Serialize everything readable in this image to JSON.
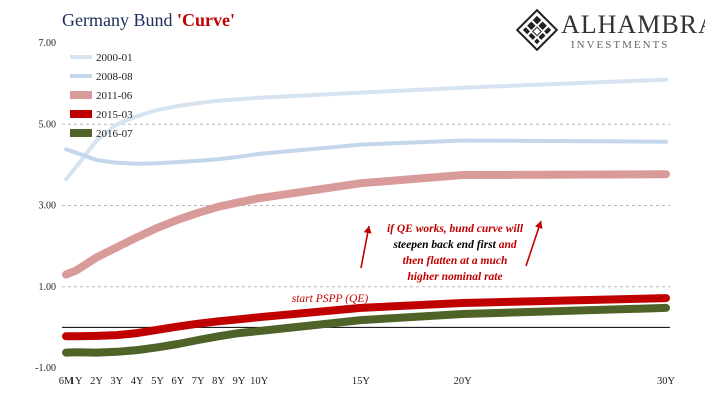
{
  "title": {
    "main": "Germany Bund ",
    "accent": "'Curve'"
  },
  "logo": {
    "name": "ALHAMBRA",
    "sub": "INVESTMENTS"
  },
  "colors": {
    "s2000": "#d6e3f0",
    "s2008": "#c3d6ec",
    "s2011": "#d99a9a",
    "s2015": "#c00000",
    "s2016": "#4f6228",
    "arrow": "#c00000",
    "grid": "#b8b8b8",
    "zero": "#000000"
  },
  "chart_data": {
    "type": "line",
    "x_tick_labels": [
      "6M",
      "1Y",
      "2Y",
      "3Y",
      "4Y",
      "5Y",
      "6Y",
      "7Y",
      "8Y",
      "9Y",
      "10Y",
      "15Y",
      "20Y",
      "30Y"
    ],
    "x_years": [
      0.5,
      1,
      2,
      3,
      4,
      5,
      6,
      7,
      8,
      9,
      10,
      15,
      20,
      30
    ],
    "y_ticks": [
      "7.00",
      "5.00",
      "3.00",
      "1.00",
      "-1.00"
    ],
    "y_tick_values": [
      7,
      5,
      3,
      1,
      -1
    ],
    "ylim": [
      -1,
      7
    ],
    "grid": true,
    "legend_position": "top-left",
    "series": [
      {
        "name": "2000-01",
        "color_key": "s2000",
        "width": 4,
        "values": [
          3.65,
          3.95,
          4.6,
          5.0,
          5.2,
          5.35,
          5.45,
          5.52,
          5.58,
          5.62,
          5.65,
          5.78,
          5.9,
          6.1
        ]
      },
      {
        "name": "2008-08",
        "color_key": "s2008",
        "width": 4,
        "values": [
          4.38,
          4.3,
          4.12,
          4.05,
          4.03,
          4.04,
          4.07,
          4.1,
          4.14,
          4.2,
          4.27,
          4.5,
          4.6,
          4.57
        ]
      },
      {
        "name": "2011-06",
        "color_key": "s2011",
        "width": 8,
        "values": [
          1.3,
          1.4,
          1.72,
          1.97,
          2.22,
          2.45,
          2.65,
          2.82,
          2.97,
          3.08,
          3.18,
          3.55,
          3.75,
          3.77
        ]
      },
      {
        "name": "2015-03",
        "color_key": "s2015",
        "width": 8,
        "values": [
          -0.22,
          -0.22,
          -0.21,
          -0.19,
          -0.14,
          -0.06,
          0.02,
          0.09,
          0.15,
          0.2,
          0.25,
          0.48,
          0.6,
          0.72
        ]
      },
      {
        "name": "2016-07",
        "color_key": "s2016",
        "width": 8,
        "values": [
          -0.62,
          -0.61,
          -0.62,
          -0.6,
          -0.56,
          -0.49,
          -0.41,
          -0.31,
          -0.22,
          -0.14,
          -0.09,
          0.18,
          0.33,
          0.48
        ]
      }
    ],
    "annotations": {
      "pspp": "start PSPP (QE)",
      "qe_lines": [
        {
          "text": "if QE works, bund curve will",
          "color": "#c00000"
        },
        {
          "text": "steepen back end first",
          "color": "#000000",
          "tail": " and",
          "tail_color": "#c00000"
        },
        {
          "text": "then flatten at a much",
          "color": "#c00000"
        },
        {
          "text": "higher nominal rate",
          "color": "#c00000"
        }
      ]
    }
  }
}
